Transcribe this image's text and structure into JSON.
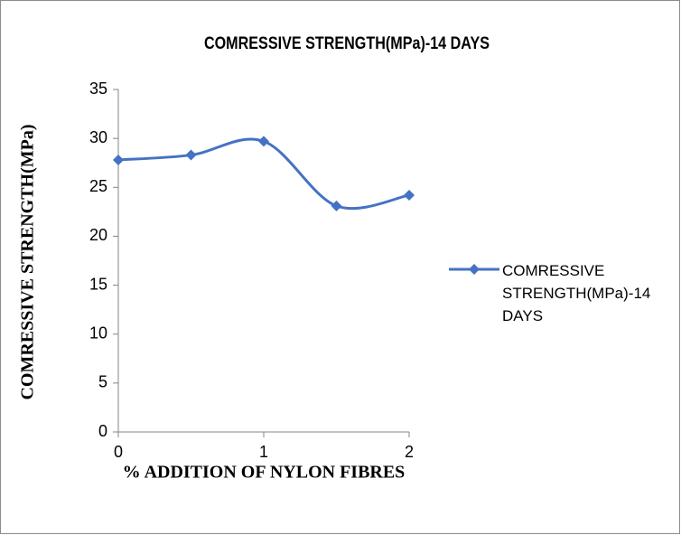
{
  "chart_data": {
    "type": "line",
    "title": "COMRESSIVE STRENGTH(MPa)-14 DAYS",
    "x_label": "% ADDITION OF NYLON FIBRES",
    "y_label": "COMRESSIVE STRENGTH(MPa)",
    "x": [
      0,
      0.5,
      1,
      1.5,
      2
    ],
    "series": [
      {
        "name": "COMRESSIVE STRENGTH(MPa)-14 DAYS",
        "color": "#4472c4",
        "values": [
          27.8,
          28.3,
          29.7,
          23.1,
          24.2
        ]
      }
    ],
    "xlim": [
      0,
      2
    ],
    "xticks": [
      0,
      1,
      2
    ],
    "ylim": [
      0,
      35
    ],
    "yticks": [
      0,
      5,
      10,
      15,
      20,
      25,
      30,
      35
    ],
    "smooth": true,
    "legend": "right"
  }
}
